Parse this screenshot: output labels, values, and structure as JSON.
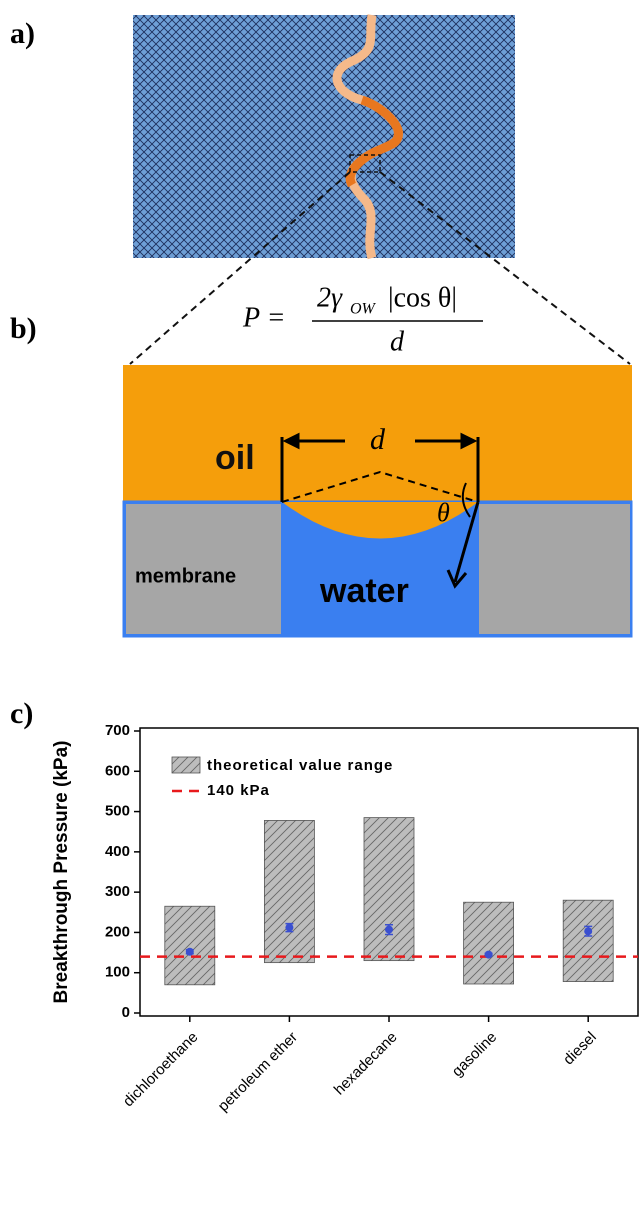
{
  "panels": {
    "a": {
      "label": "a)"
    },
    "b": {
      "label": "b)",
      "formula": {
        "lhs": "P =",
        "numerator": "2γ",
        "subscript": "OW",
        "abs": "|cos θ|",
        "denominator": "d"
      },
      "oil": "oil",
      "d": "d",
      "theta": "θ",
      "membrane": "membrane",
      "water": "water"
    },
    "c": {
      "label": "c)"
    }
  },
  "chart_data": {
    "type": "range-point",
    "y_label": "Breakthrough Pressure (kPa)",
    "categories": [
      "dichloroethane",
      "petroleum ether",
      "hexadecane",
      "gasoline",
      "diesel"
    ],
    "range": {
      "name": "theoretical value range",
      "color": "#b8b8b8",
      "low": [
        70,
        125,
        130,
        72,
        78
      ],
      "high": [
        265,
        478,
        485,
        275,
        280
      ]
    },
    "points": {
      "color": "#3a4fd0",
      "values": [
        152,
        212,
        207,
        145,
        203
      ],
      "errors": [
        5,
        10,
        12,
        3,
        12
      ]
    },
    "reference": {
      "name": "140 kPa",
      "value": 140,
      "color": "#e8191c"
    },
    "ylim": [
      0,
      700
    ],
    "yticks": [
      0,
      100,
      200,
      300,
      400,
      500,
      600,
      700
    ],
    "grid": false
  }
}
